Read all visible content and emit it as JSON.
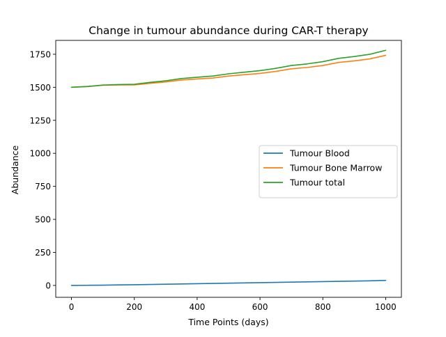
{
  "chart_data": {
    "type": "line",
    "title": "Change in tumour abundance during CAR-T therapy",
    "xlabel": "Time Points (days)",
    "ylabel": "Abundance",
    "xlim": [
      -50,
      1050
    ],
    "ylim": [
      -90,
      1855
    ],
    "xticks": [
      0,
      200,
      400,
      600,
      800,
      1000
    ],
    "yticks": [
      0,
      250,
      500,
      750,
      1000,
      1250,
      1500,
      1750
    ],
    "grid": false,
    "legend_position": "center-right",
    "series": [
      {
        "name": "Tumour Blood",
        "color": "#1f77b4",
        "x": [
          0,
          50,
          100,
          150,
          200,
          250,
          300,
          350,
          400,
          450,
          500,
          550,
          600,
          650,
          700,
          750,
          800,
          850,
          900,
          950,
          1000
        ],
        "y": [
          0,
          1,
          2,
          4,
          5,
          7,
          9,
          11,
          13,
          15,
          17,
          19,
          21,
          23,
          25,
          27,
          29,
          31,
          33,
          35,
          38
        ]
      },
      {
        "name": "Tumour Bone Marrow",
        "color": "#ff7f0e",
        "x": [
          0,
          50,
          100,
          150,
          200,
          250,
          300,
          350,
          400,
          450,
          500,
          550,
          600,
          650,
          700,
          750,
          800,
          850,
          900,
          950,
          1000
        ],
        "y": [
          1500,
          1505,
          1515,
          1517,
          1518,
          1530,
          1540,
          1555,
          1563,
          1570,
          1585,
          1595,
          1605,
          1620,
          1640,
          1650,
          1665,
          1688,
          1700,
          1715,
          1742
        ]
      },
      {
        "name": "Tumour total",
        "color": "#2ca02c",
        "x": [
          0,
          50,
          100,
          150,
          200,
          250,
          300,
          350,
          400,
          450,
          500,
          550,
          600,
          650,
          700,
          750,
          800,
          850,
          900,
          950,
          1000
        ],
        "y": [
          1500,
          1506,
          1517,
          1521,
          1523,
          1537,
          1549,
          1566,
          1576,
          1585,
          1602,
          1614,
          1626,
          1643,
          1665,
          1677,
          1694,
          1719,
          1733,
          1750,
          1780
        ]
      }
    ]
  }
}
